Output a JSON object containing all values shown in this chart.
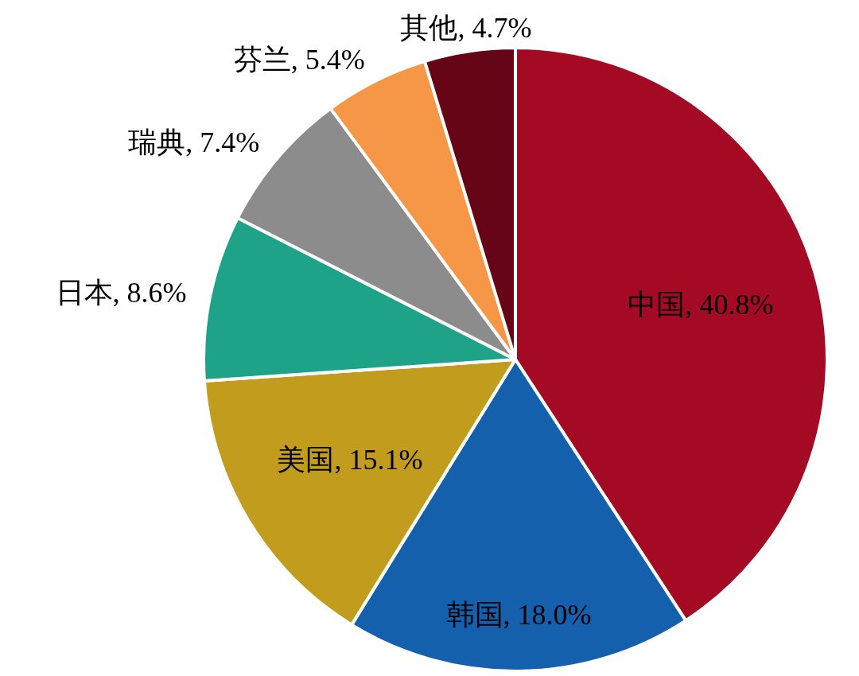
{
  "chart_data": {
    "type": "pie",
    "categories": [
      "中国",
      "韩国",
      "美国",
      "日本",
      "瑞典",
      "芬兰",
      "其他"
    ],
    "values": [
      40.8,
      18.0,
      15.1,
      8.6,
      7.4,
      5.4,
      4.7
    ],
    "value_labels": [
      "40.8%",
      "18.0%",
      "15.1%",
      "8.6%",
      "7.4%",
      "5.4%",
      "4.7%"
    ],
    "colors": [
      "#a50a24",
      "#1560ad",
      "#c29c1c",
      "#1fa388",
      "#8c8c8c",
      "#f59746",
      "#650515"
    ]
  }
}
